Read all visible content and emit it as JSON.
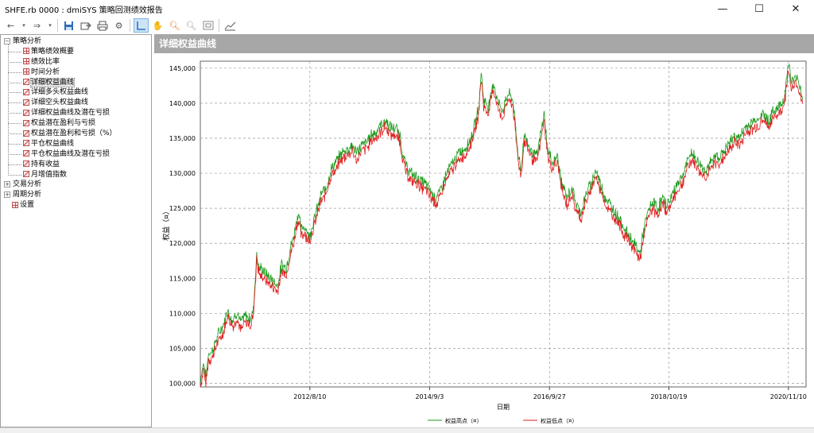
{
  "window": {
    "title": "SHFE.rb 0000 : dmiSYS 策略回测绩效报告",
    "minimize": "—",
    "maximize": "☐",
    "close": "✕"
  },
  "toolbar": {
    "icons": [
      "back-arrow-icon",
      "dropdown-icon",
      "forward-arrow-icon",
      "dropdown-icon",
      "save-icon",
      "export-icon",
      "print-icon",
      "settings-gear-icon",
      "crosshair-cursor-icon",
      "hand-pan-icon",
      "zoom-in-icon",
      "zoom-out-icon",
      "zoom-reset-icon",
      "chart-style-icon"
    ]
  },
  "sidebar": {
    "groups": [
      {
        "label": "策略分析",
        "expander": "−",
        "children": [
          {
            "label": "策略绩效概要",
            "icon": "grid"
          },
          {
            "label": "绩效比率",
            "icon": "grid"
          },
          {
            "label": "时间分析",
            "icon": "grid"
          },
          {
            "label": "详细权益曲线",
            "icon": "chart",
            "selected": true
          },
          {
            "label": "详细多头权益曲线",
            "icon": "chart"
          },
          {
            "label": "详细空头权益曲线",
            "icon": "chart"
          },
          {
            "label": "详细权益曲线及潜在亏损",
            "icon": "chart"
          },
          {
            "label": "权益潜在盈利与亏损",
            "icon": "chart"
          },
          {
            "label": "权益潜在盈利和亏损（%）",
            "icon": "chart"
          },
          {
            "label": "平仓权益曲线",
            "icon": "chart"
          },
          {
            "label": "平仓权益曲线及潜在亏损",
            "icon": "chart"
          },
          {
            "label": "持有收益",
            "icon": "chart"
          },
          {
            "label": "月增值指数",
            "icon": "chart"
          }
        ]
      },
      {
        "label": "交易分析",
        "expander": "+",
        "children": []
      },
      {
        "label": "周期分析",
        "expander": "+",
        "children": []
      },
      {
        "label": "设置",
        "expander": "",
        "icon": "grid",
        "children": []
      }
    ]
  },
  "panel": {
    "title": "详细权益曲线"
  },
  "chart_data": {
    "type": "line",
    "title": "",
    "xlabel": "日期",
    "ylabel": "权益（¤）",
    "ylim": [
      99500,
      146000
    ],
    "xlim": [
      "2010-09-20",
      "2021-03-01"
    ],
    "y_ticks": [
      100000,
      105000,
      110000,
      115000,
      120000,
      125000,
      130000,
      135000,
      140000,
      145000
    ],
    "y_tick_labels": [
      "100,000",
      "105,000",
      "110,000",
      "115,000",
      "120,000",
      "125,000",
      "130,000",
      "135,000",
      "140,000",
      "145,000"
    ],
    "x_ticks": [
      "2012-08-10",
      "2014-09-03",
      "2016-09-27",
      "2018-10-19",
      "2020-11-10"
    ],
    "x_tick_labels": [
      "2012/8/10",
      "2014/9/3",
      "2016/9/27",
      "2018/10/19",
      "2020/11/10"
    ],
    "grid": true,
    "legend_position": "bottom-center",
    "colors": {
      "high": "#1a9a1a",
      "low": "#e02020"
    },
    "series": [
      {
        "name": "权益高点（¤）",
        "color": "#1a9a1a"
      },
      {
        "name": "权益低点（¤）",
        "color": "#e02020"
      }
    ],
    "points": [
      [
        "2010-09-20",
        100000
      ],
      [
        "2010-10-10",
        102500
      ],
      [
        "2010-10-25",
        100200
      ],
      [
        "2010-11-10",
        103800
      ],
      [
        "2010-12-05",
        104200
      ],
      [
        "2011-01-10",
        106500
      ],
      [
        "2011-02-15",
        108000
      ],
      [
        "2011-03-10",
        110000
      ],
      [
        "2011-04-10",
        108500
      ],
      [
        "2011-05-10",
        109800
      ],
      [
        "2011-06-01",
        108200
      ],
      [
        "2011-07-01",
        109200
      ],
      [
        "2011-08-01",
        108800
      ],
      [
        "2011-08-20",
        110000
      ],
      [
        "2011-09-10",
        118000
      ],
      [
        "2011-09-25",
        116000
      ],
      [
        "2011-10-15",
        115800
      ],
      [
        "2011-11-15",
        115000
      ],
      [
        "2011-12-20",
        114200
      ],
      [
        "2012-01-20",
        113500
      ],
      [
        "2012-02-15",
        116500
      ],
      [
        "2012-03-15",
        116000
      ],
      [
        "2012-04-10",
        119000
      ],
      [
        "2012-05-01",
        120500
      ],
      [
        "2012-05-15",
        122500
      ],
      [
        "2012-06-01",
        124000
      ],
      [
        "2012-06-15",
        121500
      ],
      [
        "2012-07-10",
        122000
      ],
      [
        "2012-08-05",
        120500
      ],
      [
        "2012-08-25",
        122000
      ],
      [
        "2012-09-20",
        124000
      ],
      [
        "2012-10-20",
        126500
      ],
      [
        "2012-11-20",
        127500
      ],
      [
        "2012-12-20",
        130000
      ],
      [
        "2013-02-01",
        131500
      ],
      [
        "2013-03-01",
        132500
      ],
      [
        "2013-04-01",
        133000
      ],
      [
        "2013-05-01",
        133500
      ],
      [
        "2013-06-01",
        132500
      ],
      [
        "2013-07-01",
        133500
      ],
      [
        "2013-08-01",
        134000
      ],
      [
        "2013-09-01",
        135000
      ],
      [
        "2013-10-01",
        135500
      ],
      [
        "2013-11-01",
        136500
      ],
      [
        "2013-12-01",
        137000
      ],
      [
        "2014-01-01",
        136000
      ],
      [
        "2014-02-01",
        136000
      ],
      [
        "2014-03-01",
        135000
      ],
      [
        "2014-03-20",
        132000
      ],
      [
        "2014-04-10",
        130500
      ],
      [
        "2014-05-10",
        129500
      ],
      [
        "2014-06-10",
        129000
      ],
      [
        "2014-07-10",
        128500
      ],
      [
        "2014-08-10",
        128000
      ],
      [
        "2014-09-10",
        127000
      ],
      [
        "2014-10-10",
        126000
      ],
      [
        "2014-11-10",
        127000
      ],
      [
        "2014-12-10",
        129000
      ],
      [
        "2015-01-10",
        130500
      ],
      [
        "2015-02-10",
        131500
      ],
      [
        "2015-03-10",
        132500
      ],
      [
        "2015-04-10",
        133000
      ],
      [
        "2015-05-10",
        134000
      ],
      [
        "2015-06-10",
        136000
      ],
      [
        "2015-07-10",
        139000
      ],
      [
        "2015-07-25",
        144000
      ],
      [
        "2015-08-10",
        140000
      ],
      [
        "2015-09-10",
        139000
      ],
      [
        "2015-10-10",
        142500
      ],
      [
        "2015-11-10",
        139500
      ],
      [
        "2015-12-10",
        138500
      ],
      [
        "2016-01-10",
        141000
      ],
      [
        "2016-02-10",
        140000
      ],
      [
        "2016-03-10",
        133000
      ],
      [
        "2016-04-01",
        130000
      ],
      [
        "2016-04-20",
        135000
      ],
      [
        "2016-05-10",
        134000
      ],
      [
        "2016-06-10",
        132500
      ],
      [
        "2016-07-10",
        132000
      ],
      [
        "2016-08-10",
        136000
      ],
      [
        "2016-08-25",
        138000
      ],
      [
        "2016-09-15",
        133000
      ],
      [
        "2016-10-15",
        131000
      ],
      [
        "2016-11-15",
        132000
      ],
      [
        "2016-12-15",
        128000
      ],
      [
        "2017-01-15",
        126000
      ],
      [
        "2017-02-15",
        127500
      ],
      [
        "2017-03-15",
        125000
      ],
      [
        "2017-04-15",
        124000
      ],
      [
        "2017-05-15",
        126500
      ],
      [
        "2017-06-15",
        128000
      ],
      [
        "2017-07-15",
        130000
      ],
      [
        "2017-08-15",
        128000
      ],
      [
        "2017-09-15",
        126000
      ],
      [
        "2017-10-15",
        125000
      ],
      [
        "2017-11-15",
        124000
      ],
      [
        "2017-12-15",
        123000
      ],
      [
        "2018-01-15",
        121500
      ],
      [
        "2018-02-15",
        120500
      ],
      [
        "2018-03-15",
        119500
      ],
      [
        "2018-04-10",
        118500
      ],
      [
        "2018-04-20",
        118000
      ],
      [
        "2018-05-10",
        121000
      ],
      [
        "2018-06-10",
        124000
      ],
      [
        "2018-07-10",
        125500
      ],
      [
        "2018-08-10",
        124500
      ],
      [
        "2018-09-10",
        126000
      ],
      [
        "2018-10-10",
        125000
      ],
      [
        "2018-11-10",
        126500
      ],
      [
        "2018-12-10",
        128000
      ],
      [
        "2019-01-10",
        129000
      ],
      [
        "2019-02-10",
        131000
      ],
      [
        "2019-03-10",
        132500
      ],
      [
        "2019-04-10",
        131500
      ],
      [
        "2019-05-10",
        130500
      ],
      [
        "2019-06-10",
        130000
      ],
      [
        "2019-07-10",
        131000
      ],
      [
        "2019-08-10",
        132000
      ],
      [
        "2019-09-10",
        132000
      ],
      [
        "2019-10-10",
        133000
      ],
      [
        "2019-11-10",
        134000
      ],
      [
        "2019-12-10",
        135000
      ],
      [
        "2020-01-10",
        134500
      ],
      [
        "2020-02-10",
        136000
      ],
      [
        "2020-03-10",
        136500
      ],
      [
        "2020-04-10",
        137000
      ],
      [
        "2020-05-10",
        137500
      ],
      [
        "2020-06-10",
        138000
      ],
      [
        "2020-07-10",
        137000
      ],
      [
        "2020-08-10",
        138500
      ],
      [
        "2020-09-10",
        139000
      ],
      [
        "2020-10-10",
        140000
      ],
      [
        "2020-10-25",
        142000
      ],
      [
        "2020-11-10",
        145500
      ],
      [
        "2020-11-25",
        143000
      ],
      [
        "2020-12-10",
        142500
      ],
      [
        "2021-01-01",
        143500
      ],
      [
        "2021-01-20",
        142000
      ],
      [
        "2021-02-10",
        140500
      ]
    ]
  }
}
